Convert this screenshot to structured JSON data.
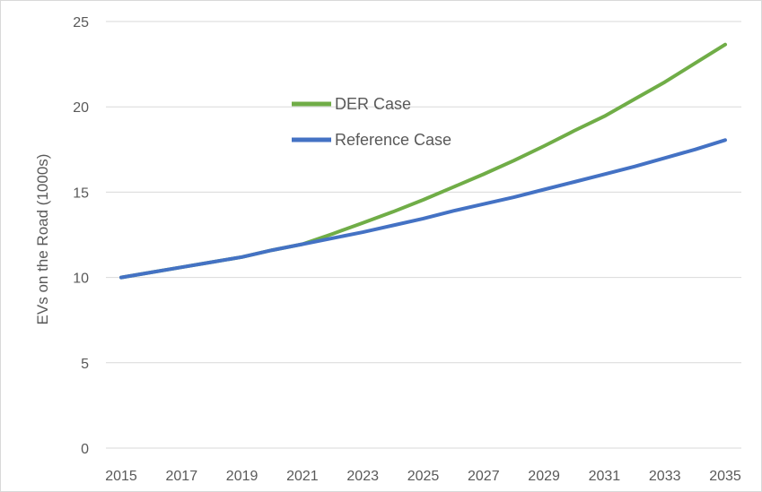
{
  "chart_data": {
    "type": "line",
    "title": "",
    "xlabel": "",
    "ylabel": "EVs on the Road (1000s)",
    "x": [
      2015,
      2016,
      2017,
      2018,
      2019,
      2020,
      2021,
      2022,
      2023,
      2024,
      2025,
      2026,
      2027,
      2028,
      2029,
      2030,
      2031,
      2032,
      2033,
      2034,
      2035
    ],
    "x_tick_labels": [
      "2015",
      "2017",
      "2019",
      "2021",
      "2023",
      "2025",
      "2027",
      "2029",
      "2031",
      "2033",
      "2035"
    ],
    "y_tick_labels": [
      "0",
      "5",
      "10",
      "15",
      "20",
      "25"
    ],
    "xlim": [
      2015,
      2035
    ],
    "ylim": [
      0,
      25
    ],
    "grid": true,
    "legend_position": "upper-left-center",
    "series": [
      {
        "name": "DER Case",
        "color": "#70ad47",
        "values": [
          10.0,
          10.3,
          10.6,
          10.9,
          11.2,
          11.6,
          11.95,
          12.55,
          13.2,
          13.85,
          14.55,
          15.3,
          16.05,
          16.85,
          17.7,
          18.6,
          19.45,
          20.45,
          21.45,
          22.55,
          23.65
        ]
      },
      {
        "name": "Reference Case",
        "color": "#4472c4",
        "values": [
          10.0,
          10.3,
          10.6,
          10.9,
          11.2,
          11.6,
          11.95,
          12.3,
          12.65,
          13.05,
          13.45,
          13.9,
          14.3,
          14.7,
          15.15,
          15.6,
          16.05,
          16.5,
          17.0,
          17.5,
          18.05
        ]
      }
    ]
  }
}
